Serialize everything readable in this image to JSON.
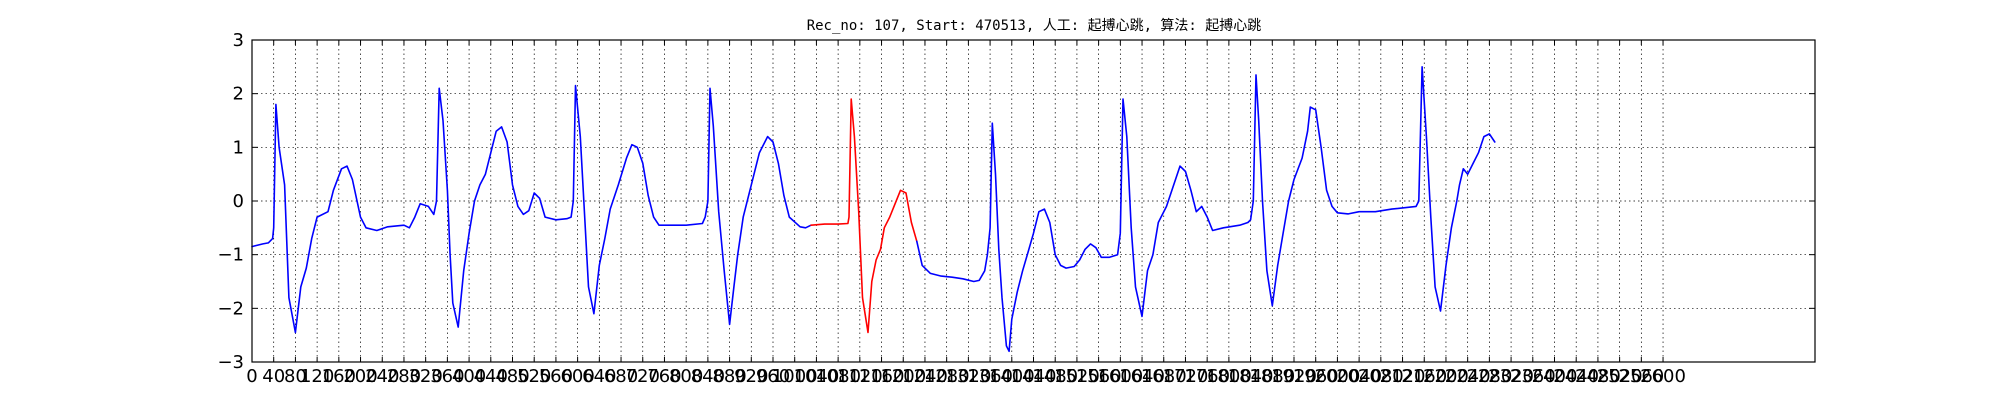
{
  "chart_data": {
    "type": "line",
    "title": "Rec_no: 107, Start: 470513, 人工: 起搏心跳, 算法: 起搏心跳",
    "xlabel": "",
    "ylabel": "",
    "xlim": [
      0,
      2880
    ],
    "ylim": [
      -3,
      3
    ],
    "x_tick_labels": [
      "0",
      "40",
      "80",
      "120",
      "160",
      "200",
      "240",
      "280",
      "320",
      "360",
      "400",
      "440",
      "480",
      "520",
      "560",
      "600",
      "640",
      "680",
      "720",
      "760",
      "800",
      "840",
      "880",
      "920",
      "960",
      "1000",
      "1040",
      "1080",
      "1120",
      "1160",
      "1200",
      "1240",
      "1280",
      "1320",
      "1360",
      "1400",
      "1440",
      "1480",
      "1520",
      "1560",
      "1600",
      "1640",
      "1680",
      "1720",
      "1760",
      "1800",
      "1840",
      "1880",
      "1920",
      "1960",
      "2000",
      "2040",
      "2080",
      "2120",
      "2160",
      "2200",
      "2240",
      "2280",
      "2320",
      "2360",
      "2400",
      "2440",
      "2480",
      "2520",
      "2560",
      "2600"
    ],
    "y_tick_labels": [
      "3",
      "2",
      "1",
      "0",
      "−1",
      "−2",
      "−3"
    ],
    "grid": true,
    "series": [
      {
        "color": "#0000ff",
        "points": [
          [
            0,
            -0.85
          ],
          [
            20,
            -0.8
          ],
          [
            30,
            -0.78
          ],
          [
            38,
            -0.7
          ],
          [
            40,
            -0.5
          ],
          [
            44,
            1.8
          ],
          [
            50,
            1.0
          ],
          [
            60,
            0.3
          ],
          [
            68,
            -1.8
          ],
          [
            80,
            -2.45
          ],
          [
            90,
            -1.6
          ],
          [
            100,
            -1.25
          ],
          [
            110,
            -0.7
          ],
          [
            120,
            -0.3
          ],
          [
            140,
            -0.2
          ],
          [
            150,
            0.2
          ],
          [
            165,
            0.6
          ],
          [
            175,
            0.65
          ],
          [
            185,
            0.4
          ],
          [
            200,
            -0.3
          ],
          [
            210,
            -0.5
          ],
          [
            230,
            -0.55
          ],
          [
            250,
            -0.48
          ],
          [
            280,
            -0.45
          ],
          [
            290,
            -0.5
          ],
          [
            300,
            -0.3
          ],
          [
            310,
            -0.05
          ],
          [
            325,
            -0.1
          ],
          [
            335,
            -0.25
          ],
          [
            340,
            0
          ],
          [
            345,
            2.1
          ],
          [
            352,
            1.5
          ],
          [
            360,
            0.2
          ],
          [
            365,
            -1
          ],
          [
            370,
            -1.9
          ],
          [
            380,
            -2.35
          ],
          [
            390,
            -1.3
          ],
          [
            400,
            -0.6
          ],
          [
            410,
            0
          ],
          [
            420,
            0.3
          ],
          [
            430,
            0.5
          ],
          [
            440,
            0.9
          ],
          [
            450,
            1.3
          ],
          [
            460,
            1.38
          ],
          [
            470,
            1.1
          ],
          [
            480,
            0.3
          ],
          [
            490,
            -0.1
          ],
          [
            500,
            -0.25
          ],
          [
            510,
            -0.18
          ],
          [
            520,
            0.15
          ],
          [
            530,
            0.05
          ],
          [
            540,
            -0.3
          ],
          [
            560,
            -0.35
          ],
          [
            580,
            -0.33
          ],
          [
            588,
            -0.3
          ],
          [
            592,
            0
          ],
          [
            596,
            2.15
          ],
          [
            605,
            1.2
          ],
          [
            613,
            -0.3
          ],
          [
            620,
            -1.6
          ],
          [
            630,
            -2.1
          ],
          [
            640,
            -1.2
          ],
          [
            650,
            -0.7
          ],
          [
            660,
            -0.15
          ],
          [
            675,
            0.3
          ],
          [
            690,
            0.8
          ],
          [
            700,
            1.05
          ],
          [
            710,
            1.0
          ],
          [
            720,
            0.7
          ],
          [
            730,
            0.1
          ],
          [
            740,
            -0.3
          ],
          [
            750,
            -0.45
          ],
          [
            775,
            -0.45
          ],
          [
            800,
            -0.45
          ],
          [
            830,
            -0.42
          ],
          [
            835,
            -0.3
          ],
          [
            840,
            0
          ],
          [
            844,
            2.1
          ],
          [
            850,
            1.4
          ],
          [
            860,
            -0.2
          ],
          [
            870,
            -1.3
          ],
          [
            880,
            -2.3
          ],
          [
            888,
            -1.6
          ],
          [
            895,
            -1.0
          ],
          [
            905,
            -0.3
          ],
          [
            920,
            0.3
          ],
          [
            935,
            0.9
          ],
          [
            950,
            1.2
          ],
          [
            960,
            1.1
          ],
          [
            970,
            0.7
          ],
          [
            980,
            0.1
          ],
          [
            990,
            -0.3
          ],
          [
            1010,
            -0.48
          ],
          [
            1020,
            -0.5
          ],
          [
            1030,
            -0.45
          ]
        ]
      },
      {
        "color": "#ff0000",
        "points": [
          [
            1030,
            -0.45
          ],
          [
            1055,
            -0.43
          ],
          [
            1080,
            -0.43
          ],
          [
            1098,
            -0.42
          ],
          [
            1100,
            -0.3
          ],
          [
            1104,
            1.9
          ],
          [
            1110,
            1.2
          ],
          [
            1118,
            -0.2
          ],
          [
            1125,
            -1.8
          ],
          [
            1135,
            -2.45
          ],
          [
            1142,
            -1.5
          ],
          [
            1150,
            -1.1
          ],
          [
            1158,
            -0.9
          ],
          [
            1165,
            -0.5
          ],
          [
            1175,
            -0.3
          ],
          [
            1185,
            -0.05
          ],
          [
            1195,
            0.2
          ],
          [
            1205,
            0.15
          ],
          [
            1215,
            -0.4
          ],
          [
            1225,
            -0.75
          ]
        ]
      },
      {
        "color": "#0000ff",
        "points": [
          [
            1225,
            -0.75
          ],
          [
            1235,
            -1.2
          ],
          [
            1250,
            -1.35
          ],
          [
            1270,
            -1.4
          ],
          [
            1290,
            -1.42
          ],
          [
            1310,
            -1.45
          ],
          [
            1330,
            -1.5
          ],
          [
            1340,
            -1.48
          ],
          [
            1350,
            -1.3
          ],
          [
            1355,
            -1.0
          ],
          [
            1360,
            -0.5
          ],
          [
            1364,
            1.45
          ],
          [
            1370,
            0.5
          ],
          [
            1376,
            -0.9
          ],
          [
            1382,
            -1.8
          ],
          [
            1390,
            -2.7
          ],
          [
            1395,
            -2.8
          ],
          [
            1400,
            -2.2
          ],
          [
            1410,
            -1.7
          ],
          [
            1420,
            -1.3
          ],
          [
            1430,
            -0.95
          ],
          [
            1440,
            -0.6
          ],
          [
            1450,
            -0.2
          ],
          [
            1460,
            -0.15
          ],
          [
            1470,
            -0.4
          ],
          [
            1480,
            -1.0
          ],
          [
            1490,
            -1.2
          ],
          [
            1500,
            -1.25
          ],
          [
            1515,
            -1.22
          ],
          [
            1525,
            -1.1
          ],
          [
            1535,
            -0.9
          ],
          [
            1545,
            -0.8
          ],
          [
            1555,
            -0.87
          ],
          [
            1565,
            -1.05
          ],
          [
            1580,
            -1.05
          ],
          [
            1595,
            -1.0
          ],
          [
            1600,
            -0.6
          ],
          [
            1605,
            1.9
          ],
          [
            1612,
            1.2
          ],
          [
            1620,
            -0.5
          ],
          [
            1628,
            -1.6
          ],
          [
            1640,
            -2.15
          ],
          [
            1650,
            -1.3
          ],
          [
            1660,
            -1.0
          ],
          [
            1670,
            -0.4
          ],
          [
            1685,
            -0.1
          ],
          [
            1695,
            0.2
          ],
          [
            1710,
            0.65
          ],
          [
            1720,
            0.55
          ],
          [
            1730,
            0.2
          ],
          [
            1740,
            -0.2
          ],
          [
            1750,
            -0.1
          ],
          [
            1760,
            -0.3
          ],
          [
            1770,
            -0.55
          ],
          [
            1790,
            -0.5
          ],
          [
            1820,
            -0.45
          ],
          [
            1835,
            -0.4
          ],
          [
            1840,
            -0.35
          ],
          [
            1845,
            0
          ],
          [
            1850,
            2.35
          ],
          [
            1855,
            1.5
          ],
          [
            1862,
            0
          ],
          [
            1870,
            -1.3
          ],
          [
            1880,
            -1.95
          ],
          [
            1890,
            -1.2
          ],
          [
            1900,
            -0.6
          ],
          [
            1910,
            0
          ],
          [
            1920,
            0.4
          ],
          [
            1935,
            0.8
          ],
          [
            1945,
            1.3
          ],
          [
            1950,
            1.75
          ],
          [
            1960,
            1.7
          ],
          [
            1970,
            1.0
          ],
          [
            1980,
            0.2
          ],
          [
            1990,
            -0.1
          ],
          [
            2000,
            -0.22
          ],
          [
            2020,
            -0.24
          ],
          [
            2040,
            -0.2
          ],
          [
            2070,
            -0.2
          ],
          [
            2100,
            -0.15
          ],
          [
            2145,
            -0.1
          ],
          [
            2150,
            0
          ],
          [
            2156,
            2.5
          ],
          [
            2164,
            1.2
          ],
          [
            2172,
            -0.3
          ],
          [
            2180,
            -1.6
          ],
          [
            2190,
            -2.05
          ],
          [
            2200,
            -1.2
          ],
          [
            2210,
            -0.5
          ],
          [
            2220,
            0
          ],
          [
            2225,
            0.3
          ],
          [
            2232,
            0.6
          ],
          [
            2240,
            0.5
          ],
          [
            2250,
            0.7
          ],
          [
            2260,
            0.9
          ],
          [
            2270,
            1.2
          ],
          [
            2280,
            1.25
          ],
          [
            2290,
            1.1
          ]
        ]
      }
    ]
  }
}
